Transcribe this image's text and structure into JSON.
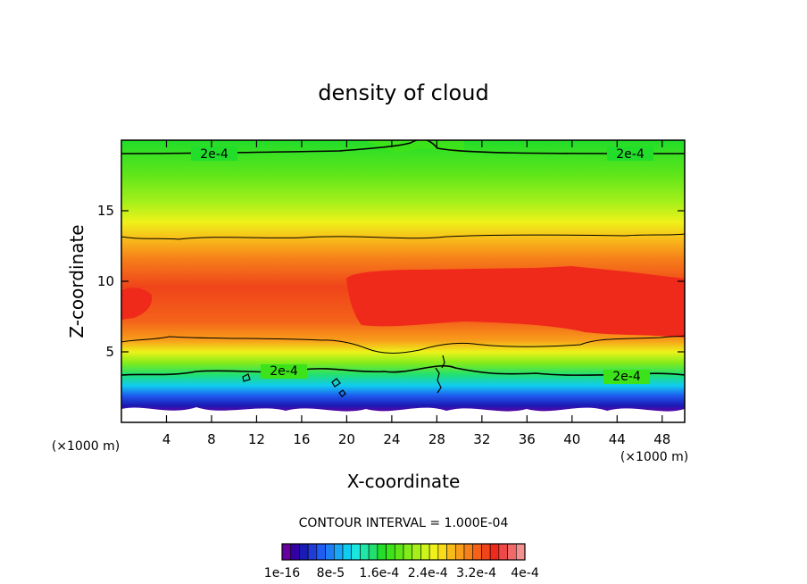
{
  "chart_data": {
    "type": "heatmap",
    "title": "density of cloud",
    "xlabel": "X-coordinate",
    "ylabel": "Z-coordinate",
    "x_unit": "(×1000 m)",
    "y_unit": "(×1000 m)",
    "xlim": [
      0,
      50
    ],
    "ylim": [
      0,
      20
    ],
    "x_ticks": [
      4,
      8,
      12,
      16,
      20,
      24,
      28,
      32,
      36,
      40,
      44,
      48
    ],
    "y_ticks": [
      5,
      10,
      15
    ],
    "contour_interval_text": "CONTOUR INTERVAL = 1.000E-04",
    "contour_labels": [
      "2e-4",
      "2e-4",
      "2e-4",
      "2e-4"
    ],
    "colorbar": {
      "label_texts": [
        "1e-16",
        "8e-5",
        "1.6e-4",
        "2.4e-4",
        "3.2e-4",
        "4e-4"
      ],
      "label_values": [
        0,
        8e-05,
        0.00016,
        0.00024,
        0.00032,
        0.0004
      ],
      "range": [
        0,
        0.0004
      ],
      "colors": [
        "#6600a0",
        "#3300a6",
        "#1a1ab4",
        "#1f3cd6",
        "#1f5cf0",
        "#1e7ef6",
        "#1aa6f4",
        "#10ccf0",
        "#1ae8e0",
        "#20e6a8",
        "#22e070",
        "#22dd2a",
        "#3ce21a",
        "#5ee61a",
        "#82ec1a",
        "#a6f01a",
        "#caf41a",
        "#eef21a",
        "#f8dc1a",
        "#f8bc1a",
        "#f89e1a",
        "#f6801a",
        "#f4621a",
        "#f0441a",
        "#f02a1a",
        "#f04848",
        "#f06a6a",
        "#f49090"
      ]
    }
  }
}
